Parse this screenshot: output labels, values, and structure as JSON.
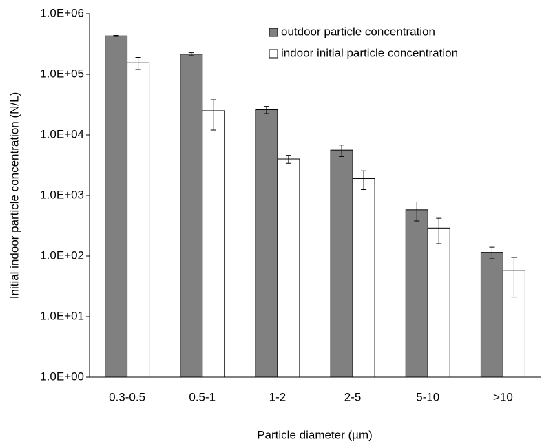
{
  "chart_data": {
    "type": "bar",
    "x_label": "Particle diameter (µm)",
    "y_label": "Initial indoor particle concentration (N/L)",
    "categories": [
      "0.3-0.5",
      "0.5-1",
      "1-2",
      "2-5",
      "5-10",
      ">10"
    ],
    "series": [
      {
        "name": "outdoor particle concentration",
        "color": "#808080",
        "values": [
          430000,
          215000,
          26000,
          5600,
          580,
          115
        ],
        "errors": [
          8000,
          12000,
          3500,
          1200,
          200,
          25
        ]
      },
      {
        "name": "indoor initial particle concentration",
        "color": "#ffffff",
        "values": [
          155000,
          25000,
          4000,
          1900,
          290,
          58
        ],
        "errors": [
          35000,
          13000,
          600,
          650,
          130,
          37
        ]
      }
    ],
    "log_scale": true,
    "ylim": [
      1,
      1000000
    ],
    "yticks": [
      {
        "value": 1,
        "label": "1.0E+00"
      },
      {
        "value": 10,
        "label": "1.0E+01"
      },
      {
        "value": 100,
        "label": "1.0E+02"
      },
      {
        "value": 1000,
        "label": "1.0E+03"
      },
      {
        "value": 10000,
        "label": "1.0E+04"
      },
      {
        "value": 100000,
        "label": "1.0E+05"
      },
      {
        "value": 1000000,
        "label": "1.0E+06"
      }
    ],
    "grid": false,
    "legend": "upper right"
  }
}
